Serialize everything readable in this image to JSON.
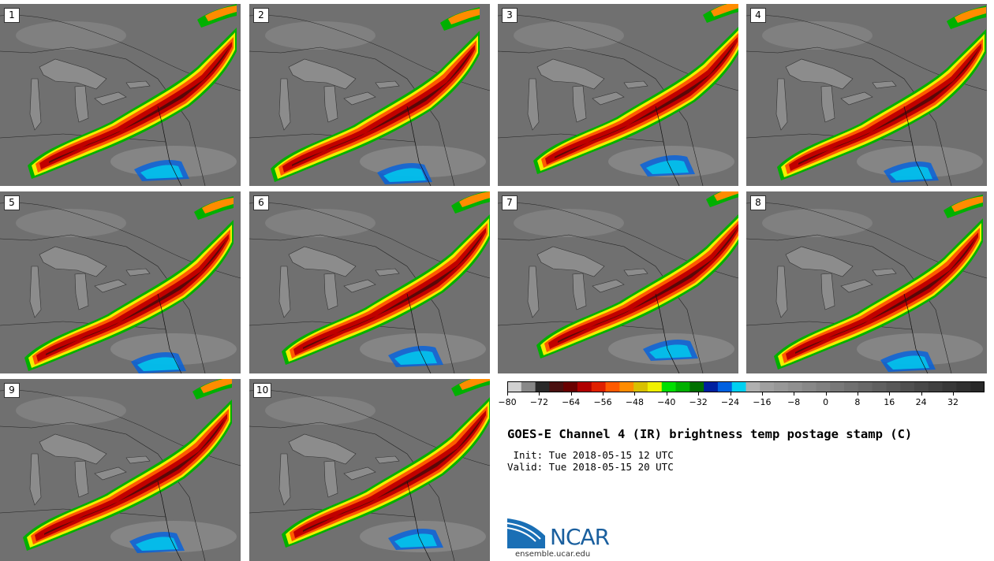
{
  "panels": [
    {
      "label": "1"
    },
    {
      "label": "2"
    },
    {
      "label": "3"
    },
    {
      "label": "4"
    },
    {
      "label": "5"
    },
    {
      "label": "6"
    },
    {
      "label": "7"
    },
    {
      "label": "8"
    },
    {
      "label": "9"
    },
    {
      "label": "10"
    }
  ],
  "colorbar": {
    "colors": [
      "#d0d0d0",
      "#888888",
      "#2a2a2a",
      "#4a1010",
      "#6a0000",
      "#b00000",
      "#e02000",
      "#ff5a00",
      "#ff8c00",
      "#d8c000",
      "#f0f000",
      "#00e000",
      "#00b000",
      "#007000",
      "#0020a0",
      "#0060e0",
      "#00d0f0",
      "#b0b0b0",
      "#a0a0a0",
      "#989898",
      "#909090",
      "#888888",
      "#808080",
      "#787878",
      "#707070",
      "#686868",
      "#606060",
      "#585858",
      "#505050",
      "#484848",
      "#404040",
      "#383838",
      "#303030",
      "#282828"
    ],
    "tick_labels": [
      "−80",
      "−72",
      "−64",
      "−56",
      "−48",
      "−40",
      "−32",
      "−24",
      "−16",
      "−8",
      "0",
      "8",
      "16",
      "24",
      "32"
    ]
  },
  "title": "GOES-E Channel 4 (IR) brightness temp postage stamp (C)",
  "init_line": " Init: Tue 2018-05-15 12 UTC",
  "valid_line": "Valid: Tue 2018-05-15 20 UTC",
  "logo_text": "NCAR",
  "url": "ensemble.ucar.edu"
}
